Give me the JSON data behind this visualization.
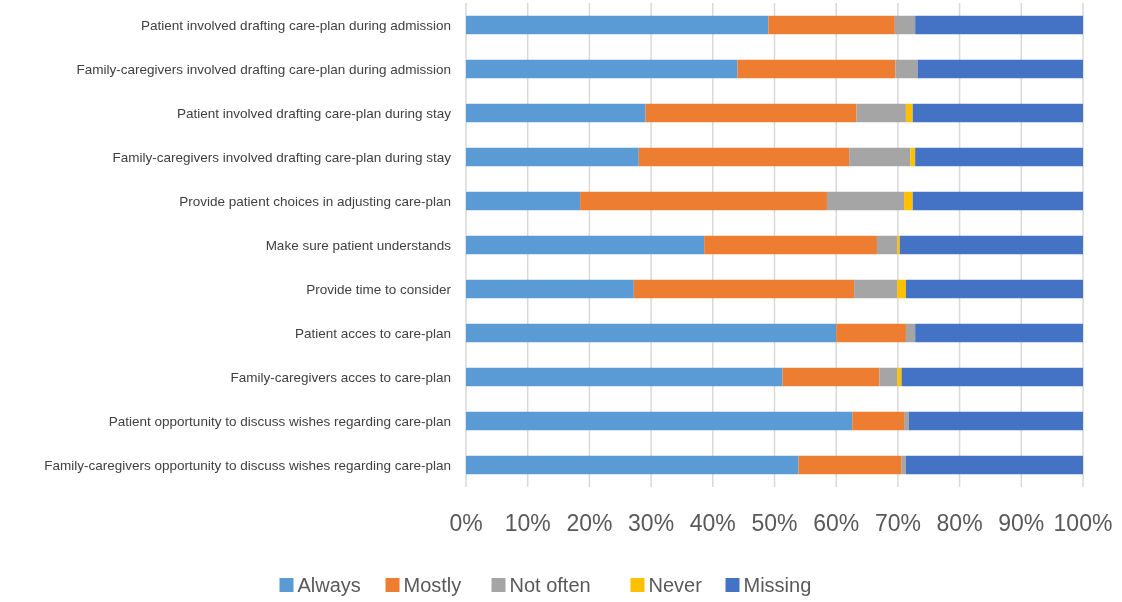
{
  "chart_data": {
    "type": "bar",
    "orientation": "horizontal",
    "stacked": true,
    "categories": [
      "Patient involved drafting care-plan during admission",
      "Family-caregivers involved drafting care-plan during admission",
      "Patient involved drafting care-plan during stay",
      "Family-caregivers involved drafting care-plan during stay",
      "Provide patient choices in adjusting care-plan",
      "Make sure patient understands",
      "Provide time to consider",
      "Patient acces to care-plan",
      "Family-caregivers acces to care-plan",
      "Patient opportunity to discuss wishes regarding care-plan",
      "Family-caregivers opportunity to discuss wishes regarding care-plan"
    ],
    "series": [
      {
        "name": "Always",
        "color": "#5b9bd5",
        "values": [
          49,
          44,
          29.1,
          28,
          18.5,
          38.6,
          27.2,
          60,
          51.3,
          62.6,
          53.9
        ]
      },
      {
        "name": "Mostly",
        "color": "#ed7d31",
        "values": [
          20.5,
          25.6,
          34.2,
          34.1,
          40,
          28,
          35.7,
          11.3,
          15.7,
          8.4,
          16.7
        ]
      },
      {
        "name": "Not often",
        "color": "#a5a5a5",
        "values": [
          3.3,
          3.6,
          8,
          9.9,
          12.5,
          3.3,
          7,
          1.5,
          2.9,
          0.8,
          0.7
        ]
      },
      {
        "name": "Never",
        "color": "#ffc000",
        "values": [
          0,
          0,
          1.1,
          0.8,
          1.4,
          0.4,
          1.4,
          0,
          0.7,
          0,
          0
        ]
      },
      {
        "name": "Missing",
        "color": "#4472c4",
        "values": [
          27.2,
          26.8,
          27.6,
          27.2,
          27.6,
          29.7,
          28.7,
          27.2,
          29.4,
          28.2,
          28.7
        ]
      }
    ],
    "xlim": [
      0,
      100
    ],
    "xticks": [
      {
        "value": 0,
        "label": "0%"
      },
      {
        "value": 10,
        "label": "10%"
      },
      {
        "value": 20,
        "label": "20%"
      },
      {
        "value": 30,
        "label": "30%"
      },
      {
        "value": 40,
        "label": "40%"
      },
      {
        "value": 50,
        "label": "50%"
      },
      {
        "value": 60,
        "label": "60%"
      },
      {
        "value": 70,
        "label": "70%"
      },
      {
        "value": 80,
        "label": "80%"
      },
      {
        "value": 90,
        "label": "90%"
      },
      {
        "value": 100,
        "label": "100%"
      }
    ],
    "grid": "x",
    "legend": "bottom"
  }
}
